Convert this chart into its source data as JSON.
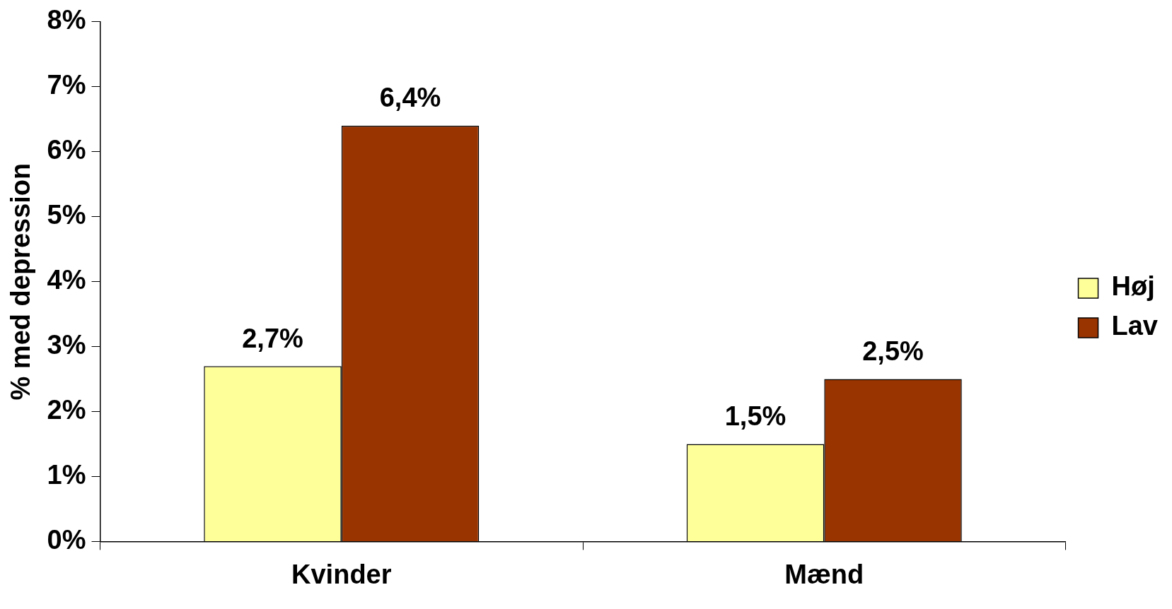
{
  "chart_data": {
    "type": "bar",
    "ylabel": "% med depression",
    "categories": [
      "Kvinder",
      "Mænd"
    ],
    "series": [
      {
        "name": "Høj",
        "color": "#ffff99",
        "values": [
          2.7,
          1.5
        ],
        "value_labels": [
          "2,7%",
          "1,5%"
        ]
      },
      {
        "name": "Lav",
        "color": "#993300",
        "values": [
          6.4,
          2.5
        ],
        "value_labels": [
          "6,4%",
          "2,5%"
        ]
      }
    ],
    "ylim": [
      0,
      8
    ],
    "yticks": [
      {
        "value": 0,
        "label": "0%"
      },
      {
        "value": 1,
        "label": "1%"
      },
      {
        "value": 2,
        "label": "2%"
      },
      {
        "value": 3,
        "label": "3%"
      },
      {
        "value": 4,
        "label": "4%"
      },
      {
        "value": 5,
        "label": "5%"
      },
      {
        "value": 6,
        "label": "6%"
      },
      {
        "value": 7,
        "label": "7%"
      },
      {
        "value": 8,
        "label": "8%"
      }
    ],
    "grid": false,
    "legend": "right"
  }
}
